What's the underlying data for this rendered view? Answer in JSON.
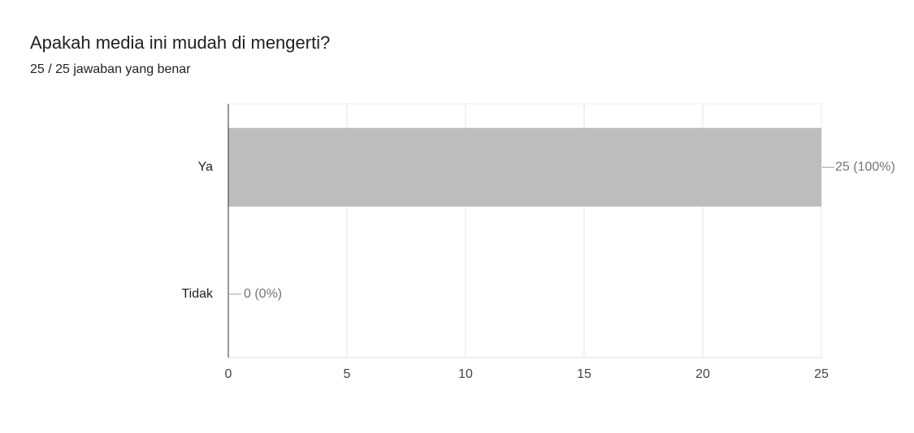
{
  "chart_data": {
    "type": "bar",
    "orientation": "horizontal",
    "title": "Apakah media ini mudah di mengerti?",
    "subtitle": "25 / 25 jawaban yang benar",
    "categories": [
      "Ya",
      "Tidak"
    ],
    "values": [
      25,
      0
    ],
    "value_labels": [
      "25 (100%)",
      "0 (0%)"
    ],
    "color": "#bdbdbd",
    "xlim": [
      0,
      25
    ],
    "xticks": [
      0,
      5,
      10,
      15,
      20,
      25
    ],
    "grid": true
  }
}
